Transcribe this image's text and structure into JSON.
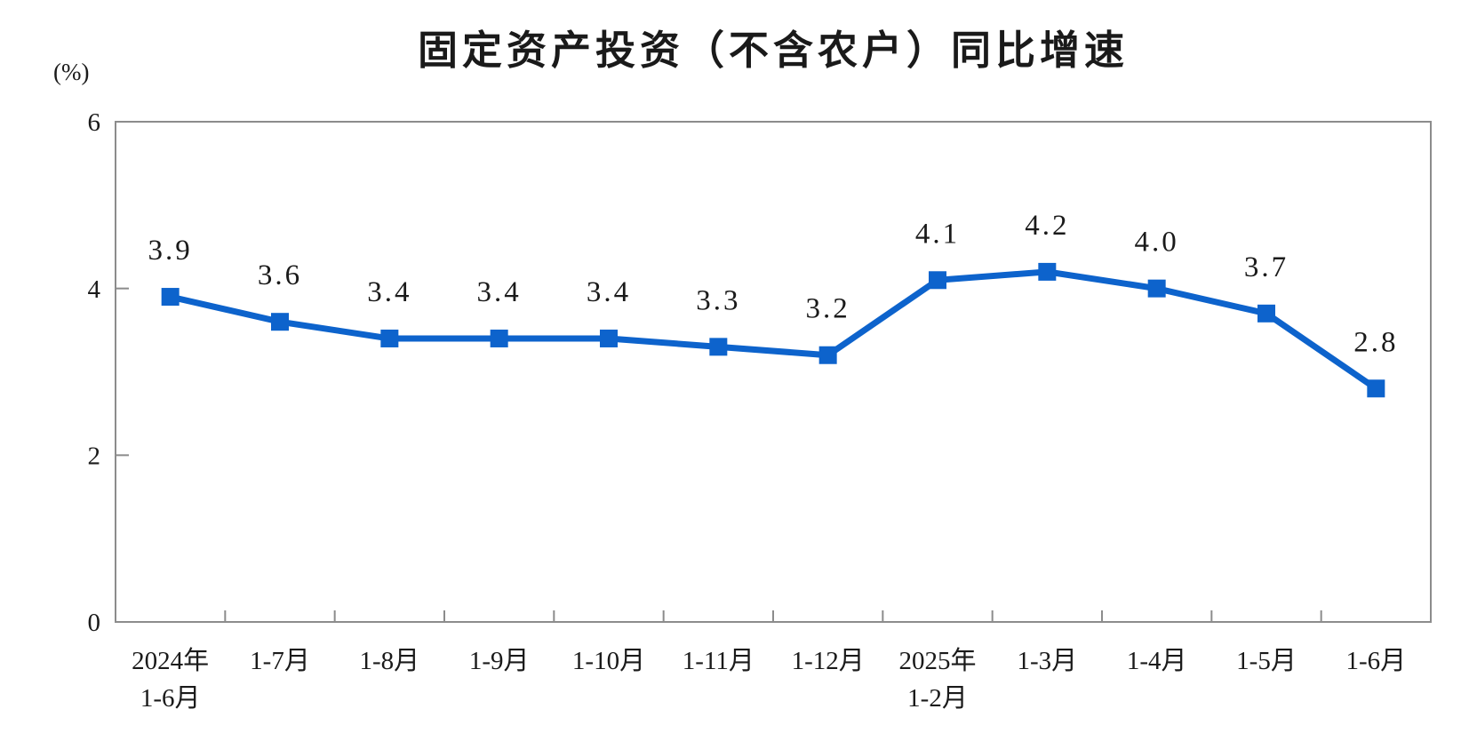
{
  "chart_data": {
    "type": "line",
    "title": "固定资产投资（不含农户）同比增速",
    "ylabel": "(%)",
    "xlabel": "",
    "categories": [
      [
        "2024年",
        "1-6月"
      ],
      [
        "1-7月"
      ],
      [
        "1-8月"
      ],
      [
        "1-9月"
      ],
      [
        "1-10月"
      ],
      [
        "1-11月"
      ],
      [
        "1-12月"
      ],
      [
        "2025年",
        "1-2月"
      ],
      [
        "1-3月"
      ],
      [
        "1-4月"
      ],
      [
        "1-5月"
      ],
      [
        "1-6月"
      ]
    ],
    "values": [
      3.9,
      3.6,
      3.4,
      3.4,
      3.4,
      3.3,
      3.2,
      4.1,
      4.2,
      4.0,
      3.7,
      2.8
    ],
    "point_labels": [
      "3.9",
      "3.6",
      "3.4",
      "3.4",
      "3.4",
      "3.3",
      "3.2",
      "4.1",
      "4.2",
      "4.0",
      "3.7",
      "2.8"
    ],
    "ylim": [
      0,
      6
    ],
    "yticks": [
      0,
      2,
      4,
      6
    ],
    "grid": false,
    "legend": "none",
    "marker": "square"
  },
  "colors": {
    "line": "#0D63CC",
    "axis": "#8C8C8C",
    "text": "#1A1A1A"
  }
}
